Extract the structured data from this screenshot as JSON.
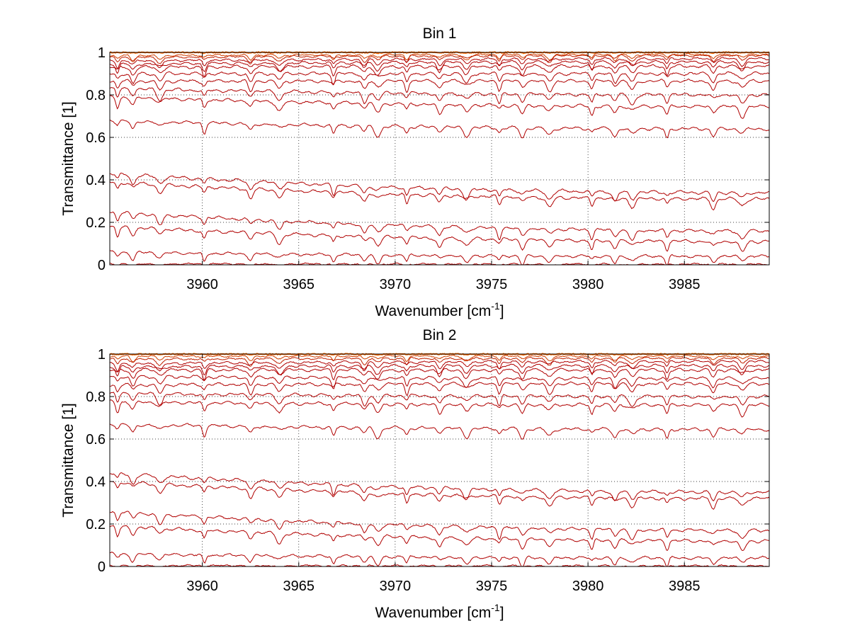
{
  "chart_data": [
    {
      "type": "line",
      "title": "Bin 1",
      "xlabel": "Wavenumber [cm",
      "xlabel_sup": "-1",
      "xlabel_end": "]",
      "ylabel": "Transmittance [1]",
      "xlim": [
        3955.2,
        3989.4
      ],
      "ylim": [
        0,
        1
      ],
      "xticks": [
        3960,
        3965,
        3970,
        3975,
        3980,
        3985
      ],
      "yticks": [
        0,
        0.2,
        0.4,
        0.6,
        0.8,
        1
      ],
      "grid": true,
      "legend": "none",
      "series": [
        {
          "start": 1.0,
          "end": 1.0,
          "color": "#ff6a00"
        },
        {
          "start": 0.985,
          "end": 0.99,
          "color": "#d04000"
        },
        {
          "start": 0.975,
          "end": 0.985,
          "color": "#c02000"
        },
        {
          "start": 0.96,
          "end": 0.97,
          "color": "#b00000"
        },
        {
          "start": 0.945,
          "end": 0.955,
          "color": "#b00000"
        },
        {
          "start": 0.93,
          "end": 0.935,
          "color": "#b00000"
        },
        {
          "start": 0.9,
          "end": 0.9,
          "color": "#b00000"
        },
        {
          "start": 0.865,
          "end": 0.865,
          "color": "#b00000"
        },
        {
          "start": 0.83,
          "end": 0.8,
          "color": "#b00000"
        },
        {
          "start": 0.79,
          "end": 0.745,
          "color": "#b00000"
        },
        {
          "start": 0.68,
          "end": 0.64,
          "color": "#b00000"
        },
        {
          "start": 0.43,
          "end": 0.34,
          "color": "#b00000"
        },
        {
          "start": 0.39,
          "end": 0.31,
          "color": "#b00000"
        },
        {
          "start": 0.25,
          "end": 0.16,
          "color": "#b00000"
        },
        {
          "start": 0.18,
          "end": 0.11,
          "color": "#b00000"
        },
        {
          "start": 0.06,
          "end": 0.04,
          "color": "#b00000"
        },
        {
          "start": 0.005,
          "end": 0.003,
          "color": "#b00000"
        }
      ]
    },
    {
      "type": "line",
      "title": "Bin 2",
      "xlabel": "Wavenumber [cm",
      "xlabel_sup": "-1",
      "xlabel_end": "]",
      "ylabel": "Transmittance [1]",
      "xlim": [
        3955.2,
        3989.4
      ],
      "ylim": [
        0,
        1
      ],
      "xticks": [
        3960,
        3965,
        3970,
        3975,
        3980,
        3985
      ],
      "yticks": [
        0,
        0.2,
        0.4,
        0.6,
        0.8,
        1
      ],
      "grid": true,
      "legend": "none",
      "series": [
        {
          "start": 1.0,
          "end": 1.0,
          "color": "#ff6a00"
        },
        {
          "start": 0.99,
          "end": 0.99,
          "color": "#d04000"
        },
        {
          "start": 0.975,
          "end": 0.98,
          "color": "#c02000"
        },
        {
          "start": 0.955,
          "end": 0.965,
          "color": "#b00000"
        },
        {
          "start": 0.94,
          "end": 0.945,
          "color": "#b00000"
        },
        {
          "start": 0.925,
          "end": 0.925,
          "color": "#b00000"
        },
        {
          "start": 0.895,
          "end": 0.885,
          "color": "#b00000"
        },
        {
          "start": 0.855,
          "end": 0.86,
          "color": "#b00000"
        },
        {
          "start": 0.815,
          "end": 0.8,
          "color": "#b00000"
        },
        {
          "start": 0.775,
          "end": 0.76,
          "color": "#b00000"
        },
        {
          "start": 0.67,
          "end": 0.645,
          "color": "#b00000"
        },
        {
          "start": 0.44,
          "end": 0.35,
          "color": "#b00000"
        },
        {
          "start": 0.4,
          "end": 0.32,
          "color": "#b00000"
        },
        {
          "start": 0.26,
          "end": 0.17,
          "color": "#b00000"
        },
        {
          "start": 0.19,
          "end": 0.12,
          "color": "#b00000"
        },
        {
          "start": 0.06,
          "end": 0.04,
          "color": "#b00000"
        },
        {
          "start": 0.005,
          "end": 0.003,
          "color": "#b00000"
        }
      ]
    }
  ]
}
